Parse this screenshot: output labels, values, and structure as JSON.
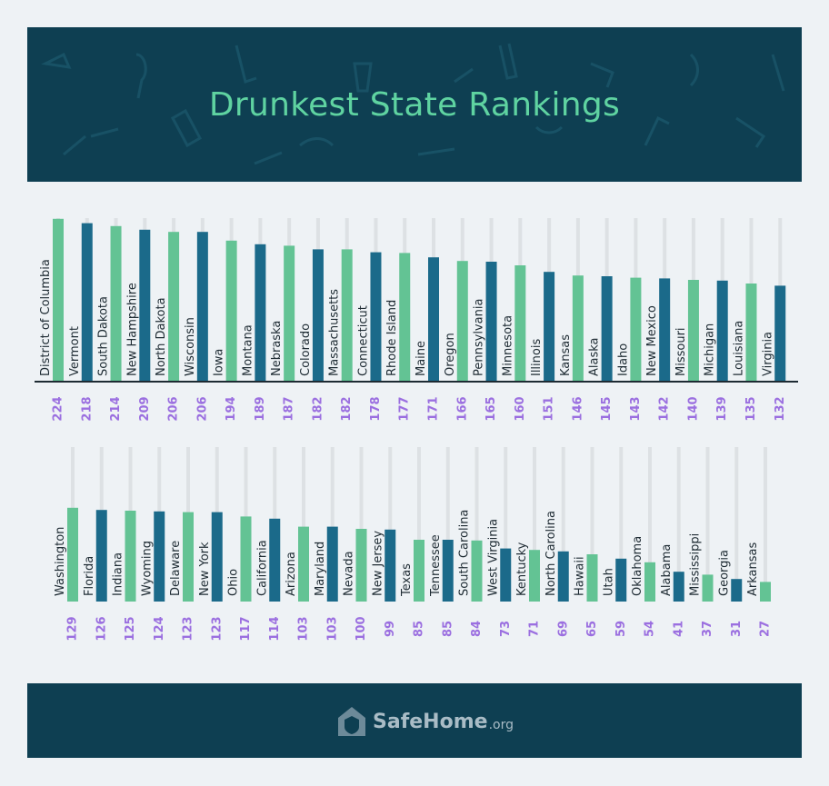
{
  "header": {
    "title": "Drunkest State Rankings"
  },
  "footer": {
    "logo_main": "SafeHome",
    "logo_tld": ".org"
  },
  "colors": {
    "green": "#63c394",
    "blue": "#1b6a8a",
    "track": "#dde1e4",
    "value": "#9b6fe0",
    "banner": "#0e3f52"
  },
  "chart_data": [
    {
      "type": "bar",
      "title": "",
      "categories": [
        "District of Columbia",
        "Vermont",
        "South Dakota",
        "New Hampshire",
        "North Dakota",
        "Wisconsin",
        "Iowa",
        "Montana",
        "Nebraska",
        "Colorado",
        "Massachusetts",
        "Connecticut",
        "Rhode Island",
        "Maine",
        "Oregon",
        "Pennsylvania",
        "Minnesota",
        "Illinois",
        "Kansas",
        "Alaska",
        "Idaho",
        "New Mexico",
        "Missouri",
        "Michigan",
        "Louisiana",
        "Virginia"
      ],
      "values": [
        224,
        218,
        214,
        209,
        206,
        206,
        194,
        189,
        187,
        182,
        182,
        178,
        177,
        171,
        166,
        165,
        160,
        151,
        146,
        145,
        143,
        142,
        140,
        139,
        135,
        132
      ],
      "ylim": [
        0,
        224
      ],
      "grid": false,
      "colors": "alternating green / blue"
    },
    {
      "type": "bar",
      "title": "",
      "categories": [
        "Washington",
        "Florida",
        "Indiana",
        "Wyoming",
        "Delaware",
        "New York",
        "Ohio",
        "California",
        "Arizona",
        "Maryland",
        "Nevada",
        "New Jersey",
        "Texas",
        "Tennessee",
        "South Carolina",
        "West Virginia",
        "Kentucky",
        "North Carolina",
        "Hawaii",
        "Utah",
        "Oklahoma",
        "Alabama",
        "Mississippi",
        "Georgia",
        "Arkansas"
      ],
      "values": [
        129,
        126,
        125,
        124,
        123,
        123,
        117,
        114,
        103,
        103,
        100,
        99,
        85,
        85,
        84,
        73,
        71,
        69,
        65,
        59,
        54,
        41,
        37,
        31,
        27
      ],
      "ylim": [
        0,
        224
      ],
      "grid": false,
      "colors": "alternating green / blue"
    }
  ]
}
